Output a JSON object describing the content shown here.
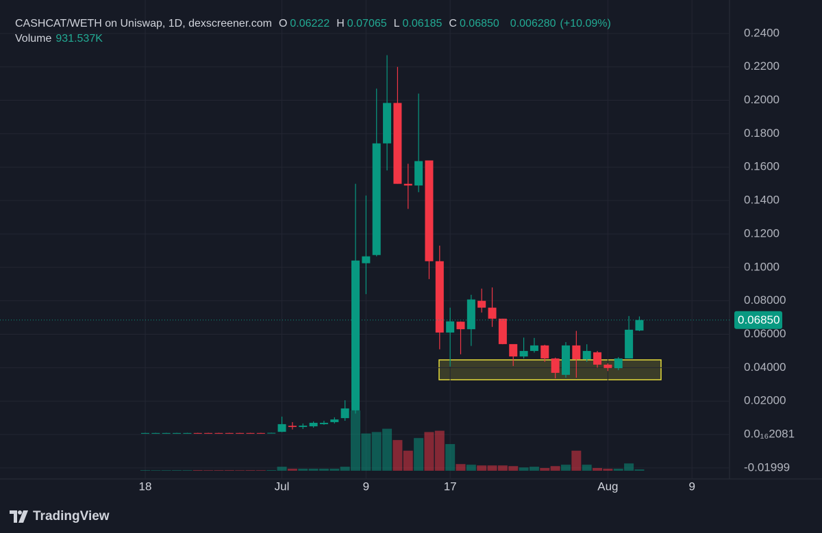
{
  "chart_data": {
    "type": "candlestick",
    "title": "CASHCAT/WETH on Uniswap, 1D, dexscreener.com",
    "ohlc_legend": [
      {
        "label": "O",
        "value": "0.06222"
      },
      {
        "label": "H",
        "value": "0.07065"
      },
      {
        "label": "L",
        "value": "0.06185"
      },
      {
        "label": "C",
        "value": "0.06850"
      }
    ],
    "change": "0.006280",
    "change_pct": "(+10.09%)",
    "volume_label": "Volume",
    "volume_value": "931.537K",
    "watermark": "TradingView",
    "up_color": "#089981",
    "down_color": "#f23645",
    "grid": true,
    "categories": [
      "18",
      null,
      null,
      null,
      null,
      null,
      null,
      null,
      null,
      null,
      null,
      null,
      null,
      "Jul",
      null,
      null,
      null,
      null,
      null,
      null,
      null,
      "9",
      null,
      null,
      null,
      null,
      null,
      null,
      null,
      "17",
      null,
      null,
      null,
      null,
      null,
      null,
      null,
      null,
      null,
      null,
      null,
      null,
      null,
      null,
      "Aug",
      null,
      null,
      null,
      null,
      null,
      null,
      null,
      "9"
    ],
    "open": [
      0.0008,
      0.0008,
      0.0008,
      0.0008,
      0.0008,
      0.0009,
      0.0009,
      0.0009,
      0.0009,
      0.0009,
      0.0009,
      0.0009,
      0.0009,
      0.0016,
      0.0052,
      0.0045,
      0.0049,
      0.0062,
      0.0074,
      0.0098,
      0.0144,
      0.1025,
      0.1074,
      0.1742,
      0.1984,
      0.15,
      0.149,
      0.164,
      0.1037,
      0.061,
      0.0675,
      0.063,
      0.08,
      0.0759,
      0.0693,
      0.0541,
      0.0467,
      0.05,
      0.0533,
      0.0455,
      0.0357,
      0.0533,
      0.045,
      0.0492,
      0.0418,
      0.0397,
      0.0455,
      0.06222,
      null,
      null,
      null,
      null,
      null
    ],
    "high": [
      0.001,
      0.001,
      0.001,
      0.001,
      0.001,
      0.001,
      0.001,
      0.001,
      0.001,
      0.001,
      0.001,
      0.001,
      0.0011,
      0.0107,
      0.0074,
      0.0066,
      0.0078,
      0.0082,
      0.0103,
      0.0205,
      0.15,
      0.143,
      0.207,
      0.227,
      0.22,
      0.162,
      0.204,
      0.164,
      0.113,
      0.0759,
      0.0677,
      0.0836,
      0.0873,
      0.088,
      0.0693,
      0.054,
      0.058,
      0.0578,
      0.0537,
      0.046,
      0.0553,
      0.062,
      0.054,
      0.05,
      0.0426,
      0.0463,
      0.0709,
      0.07065,
      null,
      null,
      null,
      null,
      null
    ],
    "low": [
      0.0007,
      0.0007,
      0.0007,
      0.0007,
      0.0007,
      0.0007,
      0.0007,
      0.0007,
      0.0007,
      0.0007,
      0.0007,
      0.0007,
      0.0008,
      0.0014,
      0.003,
      0.0033,
      0.0041,
      0.0058,
      0.0066,
      0.0082,
      0.0125,
      0.084,
      0.1066,
      0.158,
      0.15,
      0.135,
      0.145,
      0.093,
      0.051,
      0.0406,
      0.048,
      0.053,
      0.073,
      0.0644,
      0.054,
      0.041,
      0.0455,
      0.049,
      0.0435,
      0.0336,
      0.034,
      0.034,
      0.0435,
      0.04,
      0.038,
      0.0385,
      0.0455,
      0.06185,
      null,
      null,
      null,
      null,
      null
    ],
    "close": [
      0.0009,
      0.0009,
      0.0009,
      0.0009,
      0.0009,
      0.0008,
      0.0008,
      0.0008,
      0.0008,
      0.0008,
      0.0008,
      0.0008,
      0.001,
      0.0062,
      0.0045,
      0.0053,
      0.007,
      0.007,
      0.009,
      0.0156,
      0.1041,
      0.1066,
      0.1742,
      0.1984,
      0.15,
      0.149,
      0.1636,
      0.1037,
      0.061,
      0.0677,
      0.063,
      0.0808,
      0.0759,
      0.0693,
      0.0541,
      0.0467,
      0.05,
      0.0533,
      0.0455,
      0.0369,
      0.0533,
      0.045,
      0.05,
      0.0418,
      0.0398,
      0.0455,
      0.0627,
      0.0685,
      null,
      null,
      null,
      null,
      null
    ],
    "volume": [
      400000,
      350000,
      380000,
      420000,
      400000,
      450000,
      380000,
      400000,
      420000,
      350000,
      400000,
      380000,
      450000,
      2800000,
      1400000,
      1400000,
      1400000,
      1400000,
      1400000,
      2800000,
      42000000,
      26000000,
      27000000,
      29300000,
      21400000,
      14000000,
      22800000,
      27000000,
      27900000,
      18600000,
      4650000,
      4200000,
      3700000,
      3700000,
      3700000,
      3250000,
      2300000,
      2800000,
      1900000,
      3250000,
      4200000,
      14000000,
      4200000,
      1900000,
      1400000,
      1400000,
      5100000,
      931537,
      null,
      null,
      null,
      null,
      null
    ],
    "ylim": [
      -0.0225,
      0.26
    ],
    "yticks": [
      {
        "value": 0.24,
        "label": "0.2400"
      },
      {
        "value": 0.22,
        "label": "0.2200"
      },
      {
        "value": 0.2,
        "label": "0.2000"
      },
      {
        "value": 0.18,
        "label": "0.1800"
      },
      {
        "value": 0.16,
        "label": "0.1600"
      },
      {
        "value": 0.14,
        "label": "0.1400"
      },
      {
        "value": 0.12,
        "label": "0.1200"
      },
      {
        "value": 0.1,
        "label": "0.1000"
      },
      {
        "value": 0.08,
        "label": "0.08000"
      },
      {
        "value": 0.06,
        "label": "0.06000"
      },
      {
        "value": 0.04,
        "label": "0.04000"
      },
      {
        "value": 0.02,
        "label": "0.02000"
      },
      {
        "value": 2.081e-17,
        "label": "0.0₁₆2081"
      },
      -0.01999
    ],
    "last_price": {
      "value": 0.0685,
      "label": "0.06850"
    }
  }
}
